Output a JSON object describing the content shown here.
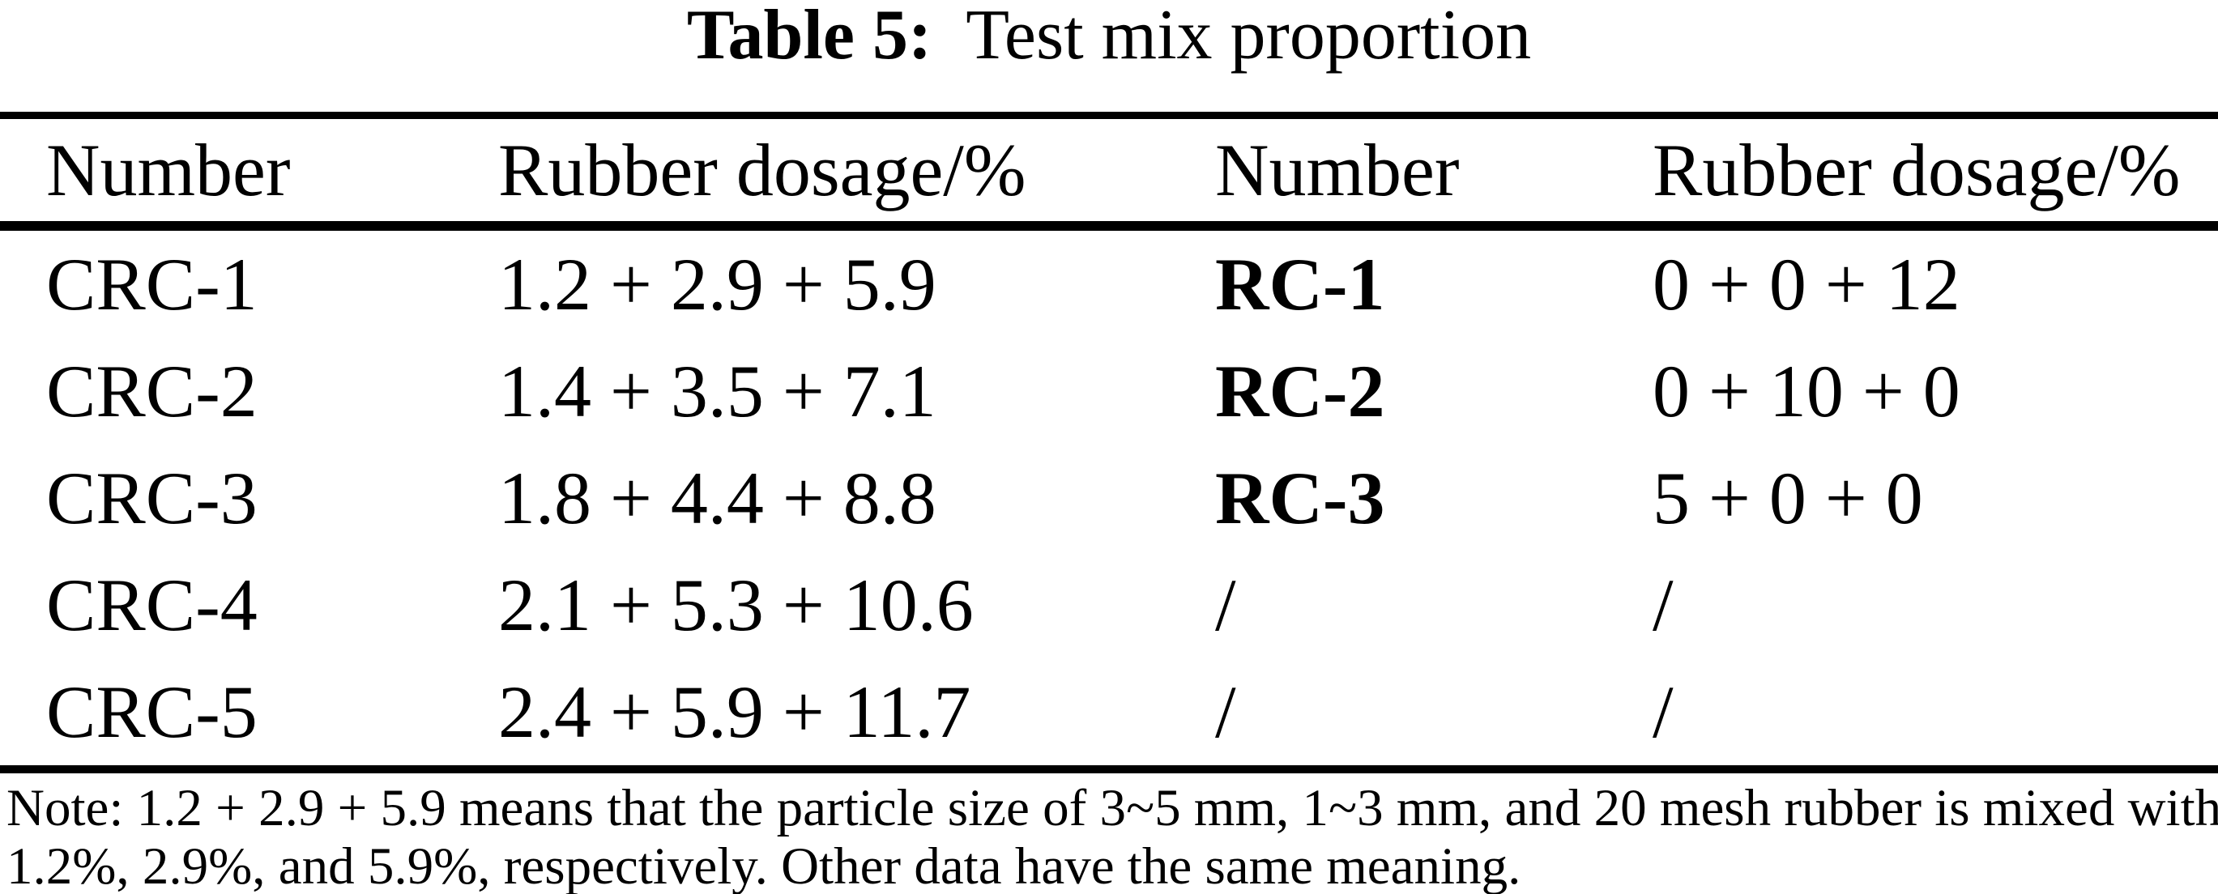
{
  "caption": {
    "label": "Table 5:",
    "title": "Test mix proportion"
  },
  "table": {
    "headers": [
      "Number",
      "Rubber dosage/%",
      "Number",
      "Rubber dosage/%"
    ],
    "rows": [
      {
        "cells": [
          "CRC-1",
          "1.2 + 2.9 + 5.9",
          "RC-1",
          "0 + 0 + 12"
        ]
      },
      {
        "cells": [
          "CRC-2",
          "1.4 + 3.5 + 7.1",
          "RC-2",
          "0 + 10 + 0"
        ]
      },
      {
        "cells": [
          "CRC-3",
          "1.8 + 4.4 + 8.8",
          "RC-3",
          "5 + 0 + 0"
        ]
      },
      {
        "cells": [
          "CRC-4",
          "2.1 + 5.3 + 10.6",
          "/",
          "/"
        ]
      },
      {
        "cells": [
          "CRC-5",
          "2.4 + 5.9 + 11.7",
          "/",
          "/"
        ]
      }
    ]
  },
  "note": {
    "line1": "Note: 1.2 + 2.9 + 5.9 means that the particle size of 3~5 mm, 1~3 mm, and 20 mesh rubber is mixed with",
    "line2": "1.2%, 2.9%, and 5.9%, respectively. Other data have the same meaning.",
    "full_text": "Note: 1.2 + 2.9 + 5.9 means that the particle size of 3~5 mm, 1~3 mm, and 20 mesh rubber is mixed with 1.2%, 2.9%, and 5.9%, respectively. Other data have the same meaning."
  },
  "colors": {
    "text": "#000000",
    "background": "#ffffff",
    "rule": "#000000"
  }
}
